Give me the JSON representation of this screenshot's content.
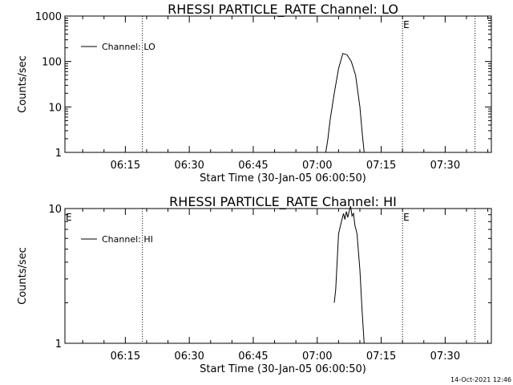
{
  "timestamp": "14-Oct-2021 12:46",
  "chart_data": [
    {
      "type": "line",
      "title": "RHESSI PARTICLE_RATE Channel: LO",
      "xlabel": "Start Time (30-Jan-05 06:00:50)",
      "ylabel": "Counts/sec",
      "y_scale": "log",
      "ylim": [
        1,
        1000
      ],
      "y_ticks": [
        {
          "value": 1,
          "label": "1"
        },
        {
          "value": 10,
          "label": "10"
        },
        {
          "value": 100,
          "label": "100"
        },
        {
          "value": 1000,
          "label": "1000"
        }
      ],
      "xlim": [
        "06:00:50",
        "07:40:50"
      ],
      "x_ticks": [
        "06:15",
        "06:30",
        "06:45",
        "07:00",
        "07:15",
        "07:30"
      ],
      "vertical_dotted_lines": [
        "06:19",
        "07:20",
        "07:37"
      ],
      "markers": [
        {
          "label": "E",
          "at": "07:20"
        }
      ],
      "legend": {
        "position": "top-left",
        "entries": [
          "Channel: LO"
        ]
      },
      "series": [
        {
          "name": "Channel: LO",
          "x": [
            "07:02",
            "07:02:30",
            "07:03",
            "07:04",
            "07:05",
            "07:06",
            "07:07",
            "07:08",
            "07:09",
            "07:10",
            "07:10:30",
            "07:11"
          ],
          "y": [
            1,
            2,
            5,
            20,
            70,
            150,
            140,
            100,
            50,
            10,
            3,
            1
          ]
        }
      ]
    },
    {
      "type": "line",
      "title": "RHESSI PARTICLE_RATE Channel: HI",
      "xlabel": "Start Time (30-Jan-05 06:00:50)",
      "ylabel": "Counts/sec",
      "y_scale": "log",
      "ylim": [
        1,
        10
      ],
      "y_ticks": [
        {
          "value": 1,
          "label": "1"
        },
        {
          "value": 10,
          "label": "10"
        }
      ],
      "xlim": [
        "06:00:50",
        "07:40:50"
      ],
      "x_ticks": [
        "06:15",
        "06:30",
        "06:45",
        "07:00",
        "07:15",
        "07:30"
      ],
      "vertical_dotted_lines": [
        "06:19",
        "07:20",
        "07:37"
      ],
      "markers": [
        {
          "label": "E",
          "at": "06:00:50"
        },
        {
          "label": "E",
          "at": "07:20"
        }
      ],
      "legend": {
        "position": "top-left",
        "entries": [
          "Channel: HI"
        ]
      },
      "series": [
        {
          "name": "Channel: HI",
          "x": [
            "07:04",
            "07:04:20",
            "07:05",
            "07:05:40",
            "07:06:10",
            "07:06:30",
            "07:06:50",
            "07:07:10",
            "07:07:30",
            "07:07:50",
            "07:08:10",
            "07:08:30",
            "07:08:50",
            "07:09:20",
            "07:10",
            "07:10:30",
            "07:11"
          ],
          "y": [
            2,
            2.5,
            6.5,
            8,
            9.2,
            8.3,
            9.5,
            8.6,
            9.6,
            10.4,
            8.8,
            9.2,
            7.5,
            6.5,
            3.5,
            1.8,
            1
          ]
        }
      ]
    }
  ]
}
